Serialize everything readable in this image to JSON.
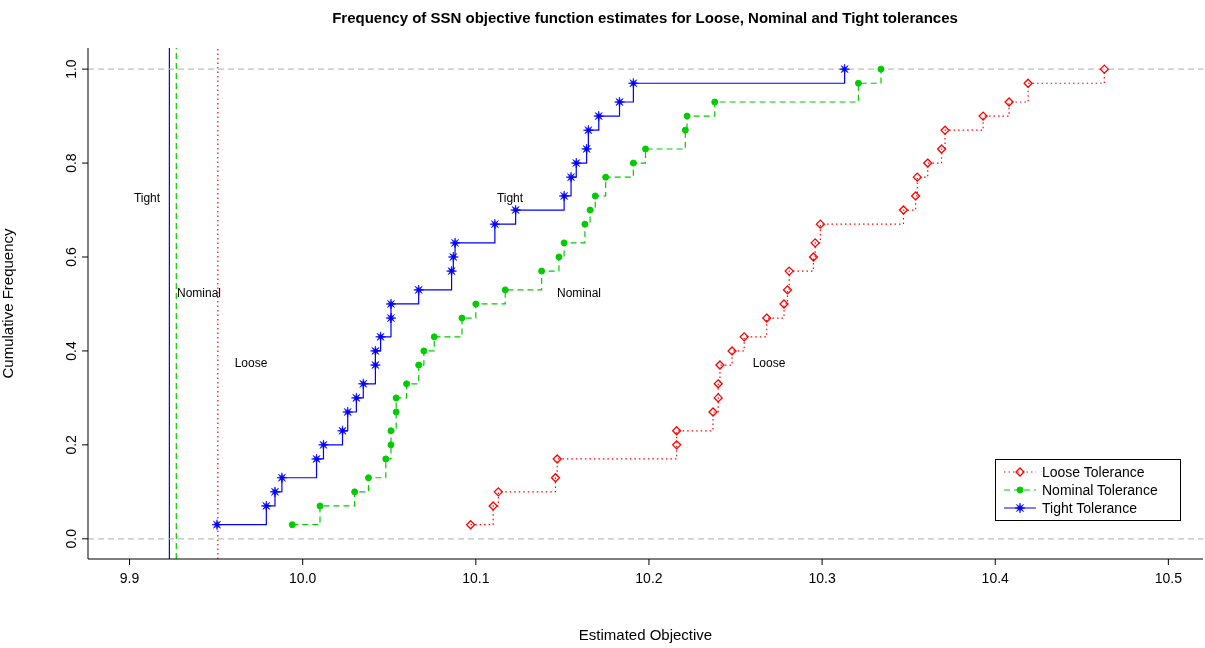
{
  "chart_data": {
    "type": "step",
    "title": "Frequency of SSN objective function estimates for Loose, Nominal and Tight tolerances",
    "xlabel": "Estimated Objective",
    "ylabel": "Cumulative Frequency",
    "xlim": [
      9.876,
      10.52
    ],
    "ylim": [
      -0.043,
      1.045
    ],
    "xticks": [
      9.9,
      {
        "value": 10.0,
        "label": "10.0"
      },
      10.1,
      10.2,
      10.3,
      10.4,
      10.5
    ],
    "yticks": [
      {
        "value": 0,
        "label": "0.0"
      },
      0.2,
      0.4,
      0.6,
      0.8,
      {
        "value": 1,
        "label": "1.0"
      }
    ],
    "legend": "bottom right",
    "series": [
      {
        "name": "Loose Tolerance",
        "color": "#ff0000",
        "marker": "diamond",
        "line_style": "dotted",
        "x": [
          10.097,
          10.11,
          10.113,
          10.146,
          10.147,
          10.216,
          10.216,
          10.237,
          10.24,
          10.24,
          10.241,
          10.248,
          10.255,
          10.268,
          10.278,
          10.28,
          10.281,
          10.295,
          10.296,
          10.299,
          10.347,
          10.354,
          10.355,
          10.361,
          10.369,
          10.371,
          10.393,
          10.408,
          10.419,
          10.463
        ],
        "values": [
          0.03,
          0.07,
          0.1,
          0.13,
          0.17,
          0.2,
          0.23,
          0.27,
          0.3,
          0.33,
          0.37,
          0.4,
          0.43,
          0.47,
          0.5,
          0.53,
          0.57,
          0.6,
          0.63,
          0.67,
          0.7,
          0.73,
          0.77,
          0.8,
          0.83,
          0.87,
          0.9,
          0.93,
          0.97,
          1.0
        ]
      },
      {
        "name": "Nominal Tolerance",
        "color": "#00cd00",
        "marker": "circle",
        "line_style": "dashed",
        "x": [
          9.994,
          10.01,
          10.03,
          10.038,
          10.048,
          10.051,
          10.051,
          10.054,
          10.054,
          10.06,
          10.067,
          10.07,
          10.076,
          10.092,
          10.1,
          10.117,
          10.138,
          10.148,
          10.151,
          10.163,
          10.166,
          10.169,
          10.175,
          10.191,
          10.198,
          10.221,
          10.222,
          10.238,
          10.321,
          10.334
        ],
        "values": [
          0.03,
          0.07,
          0.1,
          0.13,
          0.17,
          0.2,
          0.23,
          0.27,
          0.3,
          0.33,
          0.37,
          0.4,
          0.43,
          0.47,
          0.5,
          0.53,
          0.57,
          0.6,
          0.63,
          0.67,
          0.7,
          0.73,
          0.77,
          0.8,
          0.83,
          0.87,
          0.9,
          0.93,
          0.97,
          1.0
        ]
      },
      {
        "name": "Tight Tolerance",
        "color": "#0000ff",
        "marker": "star",
        "line_style": "solid",
        "x": [
          9.9505,
          9.979,
          9.984,
          9.988,
          10.008,
          10.012,
          10.023,
          10.026,
          10.031,
          10.035,
          10.042,
          10.042,
          10.045,
          10.051,
          10.051,
          10.067,
          10.086,
          10.087,
          10.088,
          10.111,
          10.123,
          10.151,
          10.155,
          10.158,
          10.164,
          10.165,
          10.171,
          10.183,
          10.191,
          10.313
        ],
        "values": [
          0.03,
          0.07,
          0.1,
          0.13,
          0.17,
          0.2,
          0.23,
          0.27,
          0.3,
          0.33,
          0.37,
          0.4,
          0.43,
          0.47,
          0.5,
          0.53,
          0.57,
          0.6,
          0.63,
          0.67,
          0.7,
          0.73,
          0.77,
          0.8,
          0.83,
          0.87,
          0.9,
          0.93,
          0.97,
          1.0
        ]
      }
    ],
    "ref_lines": [
      {
        "axis": "x",
        "value": 9.923,
        "color": "#0000ff",
        "line_style": "solid"
      },
      {
        "axis": "x",
        "value": 9.927,
        "color": "#00cd00",
        "line_style": "dashed"
      },
      {
        "axis": "x",
        "value": 9.951,
        "color": "#ff0000",
        "line_style": "dotted"
      },
      {
        "axis": "y",
        "value": 0,
        "color": "#bebebe",
        "line_style": "dashed"
      },
      {
        "axis": "y",
        "value": 1,
        "color": "#bebebe",
        "line_style": "dashed"
      }
    ],
    "annotations": [
      "Tight",
      "Nominal",
      "Loose",
      "Tight",
      "Nominal",
      "Loose"
    ]
  }
}
